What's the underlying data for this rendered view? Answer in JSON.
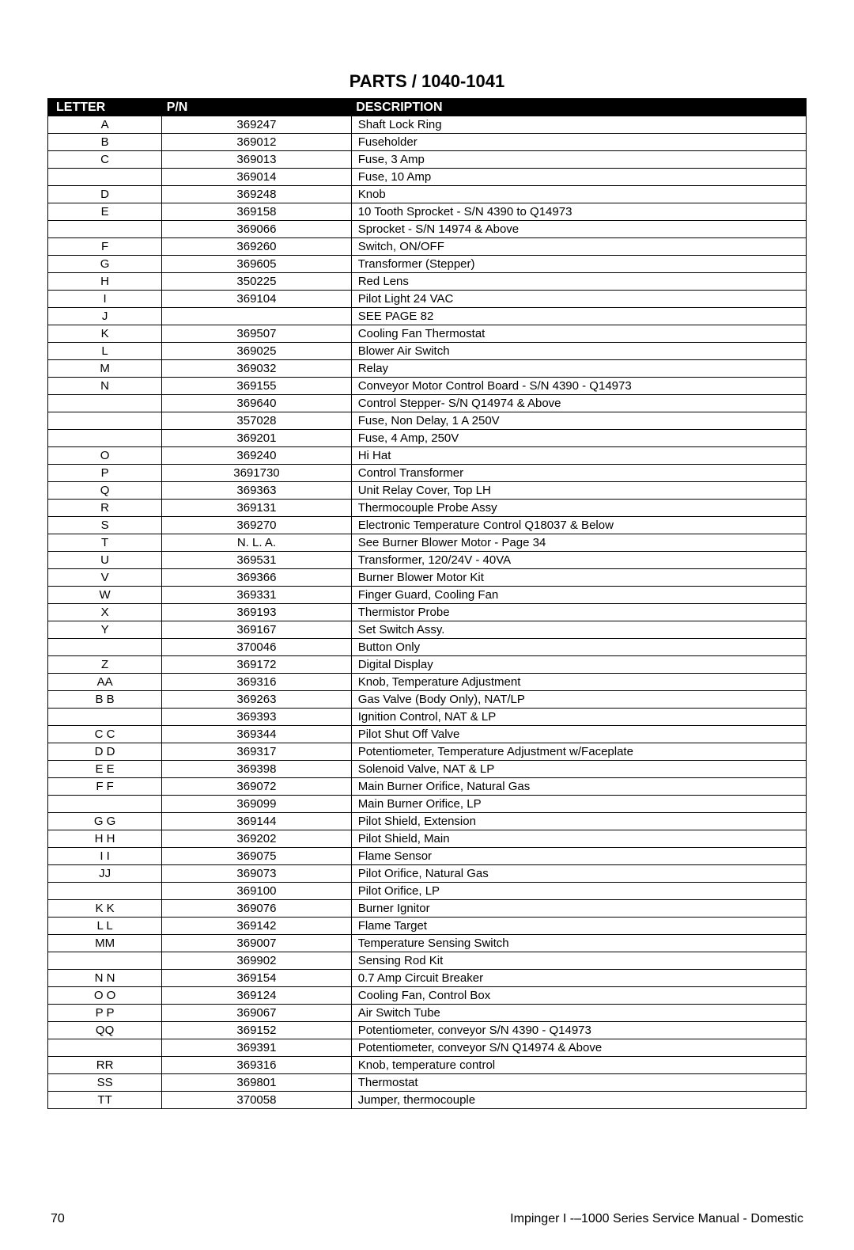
{
  "title": "PARTS / 1040-1041",
  "table": {
    "columns": [
      "LETTER",
      "P/N",
      "DESCRIPTION"
    ],
    "col_widths_pct": [
      15,
      25,
      60
    ],
    "col_align": [
      "center",
      "center",
      "left"
    ],
    "header_bg": "#000000",
    "header_fg": "#ffffff",
    "border_color": "#000000",
    "font_size": 15,
    "header_font_size": 16,
    "rows": [
      [
        "A",
        "369247",
        "Shaft Lock Ring"
      ],
      [
        "B",
        "369012",
        "Fuseholder"
      ],
      [
        "C",
        "369013",
        "Fuse, 3 Amp"
      ],
      [
        "",
        "369014",
        "Fuse, 10 Amp"
      ],
      [
        "D",
        "369248",
        "Knob"
      ],
      [
        "E",
        "369158",
        "10 Tooth Sprocket - S/N 4390 to Q14973"
      ],
      [
        "",
        "369066",
        "Sprocket - S/N 14974 & Above"
      ],
      [
        "F",
        "369260",
        "Switch, ON/OFF"
      ],
      [
        "G",
        "369605",
        "Transformer (Stepper)"
      ],
      [
        "H",
        "350225",
        "Red Lens"
      ],
      [
        "I",
        "369104",
        "Pilot Light 24 VAC"
      ],
      [
        "J",
        "",
        "SEE PAGE 82"
      ],
      [
        "K",
        "369507",
        "Cooling Fan Thermostat"
      ],
      [
        "L",
        "369025",
        "Blower Air Switch"
      ],
      [
        "M",
        "369032",
        "Relay"
      ],
      [
        "N",
        "369155",
        "Conveyor Motor Control Board - S/N 4390 - Q14973"
      ],
      [
        "",
        "369640",
        "Control Stepper- S/N Q14974 & Above"
      ],
      [
        "",
        "357028",
        "Fuse, Non Delay, 1 A 250V"
      ],
      [
        "",
        "369201",
        "Fuse, 4 Amp, 250V"
      ],
      [
        "O",
        "369240",
        "Hi Hat"
      ],
      [
        "P",
        "3691730",
        "Control Transformer"
      ],
      [
        "Q",
        "369363",
        "Unit Relay Cover, Top LH"
      ],
      [
        "R",
        "369131",
        "Thermocouple Probe Assy"
      ],
      [
        "S",
        "369270",
        "Electronic Temperature Control Q18037 & Below"
      ],
      [
        "T",
        "N. L. A.",
        "See Burner Blower Motor - Page 34"
      ],
      [
        "U",
        "369531",
        "Transformer, 120/24V - 40VA"
      ],
      [
        "V",
        "369366",
        "Burner Blower Motor Kit"
      ],
      [
        "W",
        "369331",
        "Finger Guard, Cooling Fan"
      ],
      [
        "X",
        "369193",
        "Thermistor Probe"
      ],
      [
        "Y",
        "369167",
        "Set Switch Assy."
      ],
      [
        "",
        "370046",
        "Button Only"
      ],
      [
        "Z",
        "369172",
        "Digital Display"
      ],
      [
        "AA",
        "369316",
        "Knob, Temperature Adjustment"
      ],
      [
        "B B",
        "369263",
        "Gas Valve (Body Only), NAT/LP"
      ],
      [
        "",
        "369393",
        "Ignition Control, NAT & LP"
      ],
      [
        "C C",
        "369344",
        "Pilot Shut Off Valve"
      ],
      [
        "D D",
        "369317",
        "Potentiometer, Temperature Adjustment w/Faceplate"
      ],
      [
        "E E",
        "369398",
        "Solenoid Valve, NAT & LP"
      ],
      [
        "F F",
        "369072",
        "Main Burner Orifice, Natural Gas"
      ],
      [
        "",
        "369099",
        "Main Burner Orifice, LP"
      ],
      [
        "G G",
        "369144",
        "Pilot Shield, Extension"
      ],
      [
        "H H",
        "369202",
        "Pilot Shield, Main"
      ],
      [
        "I I",
        "369075",
        "Flame Sensor"
      ],
      [
        "JJ",
        "369073",
        "Pilot Orifice, Natural Gas"
      ],
      [
        "",
        "369100",
        "Pilot Orifice, LP"
      ],
      [
        "K K",
        "369076",
        "Burner Ignitor"
      ],
      [
        "L L",
        "369142",
        "Flame Target"
      ],
      [
        "MM",
        "369007",
        "Temperature Sensing Switch"
      ],
      [
        "",
        "369902",
        "Sensing Rod Kit"
      ],
      [
        "N N",
        "369154",
        "0.7 Amp Circuit Breaker"
      ],
      [
        "O O",
        "369124",
        "Cooling Fan, Control Box"
      ],
      [
        "P P",
        "369067",
        "Air Switch Tube"
      ],
      [
        "QQ",
        "369152",
        "Potentiometer, conveyor  S/N 4390 - Q14973"
      ],
      [
        "",
        "369391",
        "Potentiometer, conveyor  S/N Q14974 & Above"
      ],
      [
        "RR",
        "369316",
        "Knob, temperature control"
      ],
      [
        "SS",
        "369801",
        "Thermostat"
      ],
      [
        "TT",
        "370058",
        "Jumper, thermocouple"
      ]
    ]
  },
  "footer": {
    "page_number": "70",
    "manual_title": "Impinger I -–1000 Series Service Manual - Domestic"
  },
  "page_bg": "#ffffff",
  "title_fontsize": 22
}
